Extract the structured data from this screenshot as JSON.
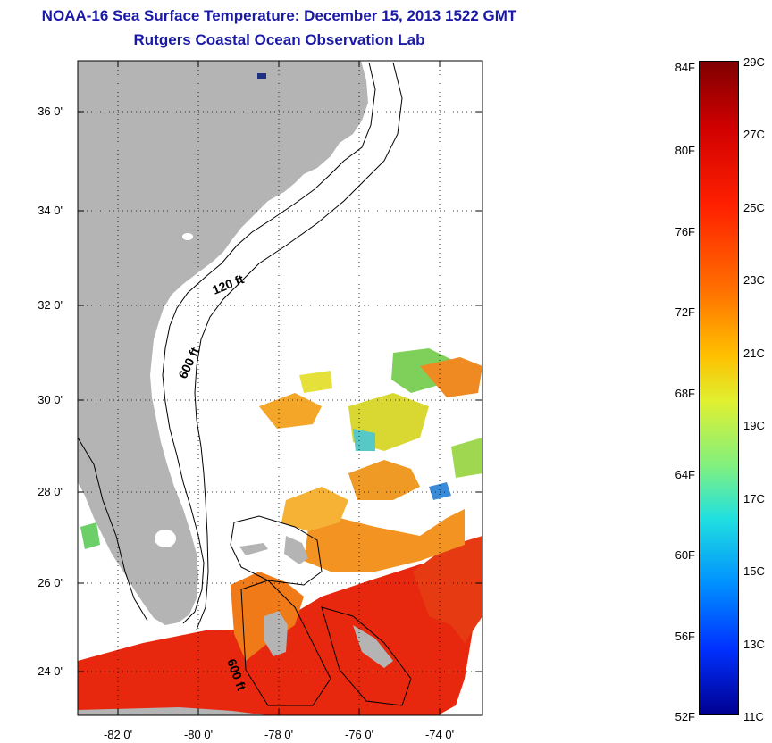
{
  "header": {
    "title": "NOAA-16 Sea Surface Temperature:  December 15, 2013 1522 GMT",
    "subtitle": "Rutgers Coastal Ocean Observation Lab"
  },
  "map": {
    "lat_labels": [
      "36 0'",
      "34 0'",
      "32 0'",
      "30 0'",
      "28 0'",
      "26 0'",
      "24 0'"
    ],
    "lon_labels": [
      "-82 0'",
      "-80 0'",
      "-78 0'",
      "-76 0'",
      "-74 0'"
    ],
    "contour_labels": [
      "120 ft",
      "600 ft",
      "600 ft"
    ],
    "land_color": "#b4b4b4",
    "grid": "dotted"
  },
  "colorbar": {
    "fahrenheit": [
      "84F",
      "80F",
      "76F",
      "72F",
      "68F",
      "64F",
      "60F",
      "56F",
      "52F"
    ],
    "celsius": [
      "29C",
      "27C",
      "25C",
      "23C",
      "21C",
      "19C",
      "17C",
      "15C",
      "13C",
      "11C"
    ],
    "scale": "jet"
  }
}
